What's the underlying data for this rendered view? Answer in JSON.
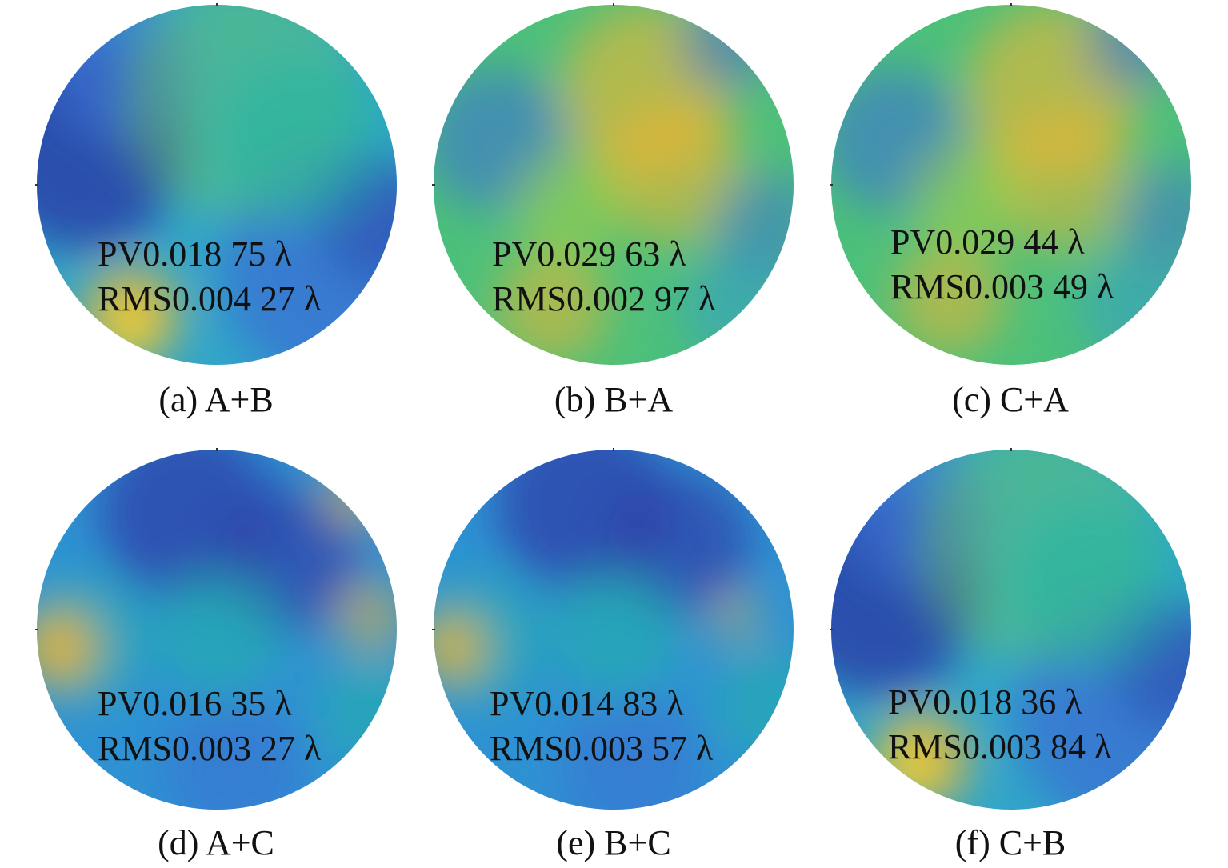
{
  "palette": {
    "deep_blue": "#2c3fa8",
    "blue": "#3b6fd4",
    "cyan_blue": "#2f9ad6",
    "teal": "#22b5a6",
    "green": "#6cc95a",
    "yellow_green": "#b6d23a",
    "orange": "#f2b531",
    "yellow": "#f7e62a"
  },
  "panels": [
    {
      "id": "a",
      "caption": "(a) A+B",
      "pv": "PV0.018 75 λ",
      "rms": "RMS0.004 27 λ",
      "base_color": "#2fa6c8",
      "blobs": [
        {
          "cx": 60,
          "cy": 180,
          "r": 130,
          "color": "#2c3fa8",
          "opacity": 0.85
        },
        {
          "cx": 110,
          "cy": 80,
          "r": 90,
          "color": "#3b6fd4",
          "opacity": 0.7
        },
        {
          "cx": 380,
          "cy": 330,
          "r": 150,
          "color": "#3b6fd4",
          "opacity": 0.75
        },
        {
          "cx": 430,
          "cy": 270,
          "r": 80,
          "color": "#2c3fa8",
          "opacity": 0.5
        },
        {
          "cx": 260,
          "cy": 120,
          "r": 150,
          "color": "#6cc95a",
          "opacity": 0.45
        },
        {
          "cx": 330,
          "cy": 170,
          "r": 110,
          "color": "#22b5a6",
          "opacity": 0.5
        },
        {
          "cx": 120,
          "cy": 390,
          "r": 60,
          "color": "#f2b531",
          "opacity": 0.85
        },
        {
          "cx": 120,
          "cy": 405,
          "r": 28,
          "color": "#f7e62a",
          "opacity": 0.8
        }
      ]
    },
    {
      "id": "b",
      "caption": "(b) B+A",
      "pv": "PV0.029 63 λ",
      "rms": "RMS0.002 97 λ",
      "base_color": "#4cc07a",
      "blobs": [
        {
          "cx": 270,
          "cy": 110,
          "r": 110,
          "color": "#f2b531",
          "opacity": 0.6
        },
        {
          "cx": 300,
          "cy": 210,
          "r": 90,
          "color": "#f2b531",
          "opacity": 0.55
        },
        {
          "cx": 80,
          "cy": 170,
          "r": 90,
          "color": "#3b6fd4",
          "opacity": 0.6
        },
        {
          "cx": 370,
          "cy": 50,
          "r": 60,
          "color": "#3b6fd4",
          "opacity": 0.55
        },
        {
          "cx": 420,
          "cy": 280,
          "r": 70,
          "color": "#3b6fd4",
          "opacity": 0.5
        },
        {
          "cx": 150,
          "cy": 380,
          "r": 70,
          "color": "#f2b531",
          "opacity": 0.55
        },
        {
          "cx": 170,
          "cy": 250,
          "r": 70,
          "color": "#b6d23a",
          "opacity": 0.45
        },
        {
          "cx": 380,
          "cy": 380,
          "r": 70,
          "color": "#2f9ad6",
          "opacity": 0.5
        }
      ]
    },
    {
      "id": "c",
      "caption": "(c) C+A",
      "pv": "PV0.029 44 λ",
      "rms": "RMS0.003 49 λ",
      "base_color": "#4cc07a",
      "blobs": [
        {
          "cx": 280,
          "cy": 110,
          "r": 110,
          "color": "#f2b531",
          "opacity": 0.6
        },
        {
          "cx": 290,
          "cy": 220,
          "r": 90,
          "color": "#f2b531",
          "opacity": 0.5
        },
        {
          "cx": 80,
          "cy": 170,
          "r": 90,
          "color": "#3b6fd4",
          "opacity": 0.6
        },
        {
          "cx": 380,
          "cy": 50,
          "r": 60,
          "color": "#3b6fd4",
          "opacity": 0.55
        },
        {
          "cx": 430,
          "cy": 270,
          "r": 70,
          "color": "#3b6fd4",
          "opacity": 0.5
        },
        {
          "cx": 150,
          "cy": 370,
          "r": 70,
          "color": "#f2b531",
          "opacity": 0.55
        },
        {
          "cx": 170,
          "cy": 240,
          "r": 70,
          "color": "#b6d23a",
          "opacity": 0.45
        },
        {
          "cx": 380,
          "cy": 380,
          "r": 70,
          "color": "#2f9ad6",
          "opacity": 0.5
        }
      ]
    },
    {
      "id": "d",
      "caption": "(d) A+C",
      "pv": "PV0.016 35 λ",
      "rms": "RMS0.003 27 λ",
      "base_color": "#2e92d2",
      "blobs": [
        {
          "cx": 190,
          "cy": 80,
          "r": 110,
          "color": "#2c3fa8",
          "opacity": 0.75
        },
        {
          "cx": 320,
          "cy": 140,
          "r": 90,
          "color": "#2c3fa8",
          "opacity": 0.7
        },
        {
          "cx": 230,
          "cy": 230,
          "r": 80,
          "color": "#22b5a6",
          "opacity": 0.55
        },
        {
          "cx": 60,
          "cy": 240,
          "r": 80,
          "color": "#22b5a6",
          "opacity": 0.5
        },
        {
          "cx": 30,
          "cy": 250,
          "r": 50,
          "color": "#f2b531",
          "opacity": 0.85
        },
        {
          "cx": 420,
          "cy": 210,
          "r": 45,
          "color": "#f2b531",
          "opacity": 0.55
        },
        {
          "cx": 400,
          "cy": 60,
          "r": 40,
          "color": "#f2b531",
          "opacity": 0.55
        },
        {
          "cx": 250,
          "cy": 400,
          "r": 90,
          "color": "#3b6fd4",
          "opacity": 0.55
        },
        {
          "cx": 420,
          "cy": 330,
          "r": 70,
          "color": "#22b5a6",
          "opacity": 0.5
        }
      ]
    },
    {
      "id": "e",
      "caption": "(e) B+C",
      "pv": "PV0.014 83 λ",
      "rms": "RMS0.003 57 λ",
      "base_color": "#2e92d2",
      "blobs": [
        {
          "cx": 190,
          "cy": 70,
          "r": 110,
          "color": "#2c3fa8",
          "opacity": 0.75
        },
        {
          "cx": 310,
          "cy": 120,
          "r": 90,
          "color": "#2c3fa8",
          "opacity": 0.7
        },
        {
          "cx": 230,
          "cy": 230,
          "r": 80,
          "color": "#22b5a6",
          "opacity": 0.55
        },
        {
          "cx": 60,
          "cy": 240,
          "r": 80,
          "color": "#22b5a6",
          "opacity": 0.5
        },
        {
          "cx": 25,
          "cy": 250,
          "r": 45,
          "color": "#f2b531",
          "opacity": 0.8
        },
        {
          "cx": 380,
          "cy": 210,
          "r": 30,
          "color": "#f2b531",
          "opacity": 0.5
        },
        {
          "cx": 250,
          "cy": 400,
          "r": 90,
          "color": "#3b6fd4",
          "opacity": 0.55
        },
        {
          "cx": 420,
          "cy": 320,
          "r": 70,
          "color": "#22b5a6",
          "opacity": 0.5
        }
      ]
    },
    {
      "id": "f",
      "caption": "(f) C+B",
      "pv": "PV0.018 36 λ",
      "rms": "RMS0.003 84 λ",
      "base_color": "#2fa6c8",
      "blobs": [
        {
          "cx": 60,
          "cy": 180,
          "r": 130,
          "color": "#2c3fa8",
          "opacity": 0.85
        },
        {
          "cx": 110,
          "cy": 80,
          "r": 90,
          "color": "#3b6fd4",
          "opacity": 0.7
        },
        {
          "cx": 380,
          "cy": 330,
          "r": 150,
          "color": "#3b6fd4",
          "opacity": 0.75
        },
        {
          "cx": 430,
          "cy": 270,
          "r": 80,
          "color": "#2c3fa8",
          "opacity": 0.5
        },
        {
          "cx": 260,
          "cy": 120,
          "r": 150,
          "color": "#6cc95a",
          "opacity": 0.45
        },
        {
          "cx": 330,
          "cy": 170,
          "r": 110,
          "color": "#22b5a6",
          "opacity": 0.5
        },
        {
          "cx": 115,
          "cy": 390,
          "r": 60,
          "color": "#f2b531",
          "opacity": 0.85
        },
        {
          "cx": 100,
          "cy": 400,
          "r": 28,
          "color": "#f7e62a",
          "opacity": 0.8
        }
      ]
    }
  ]
}
